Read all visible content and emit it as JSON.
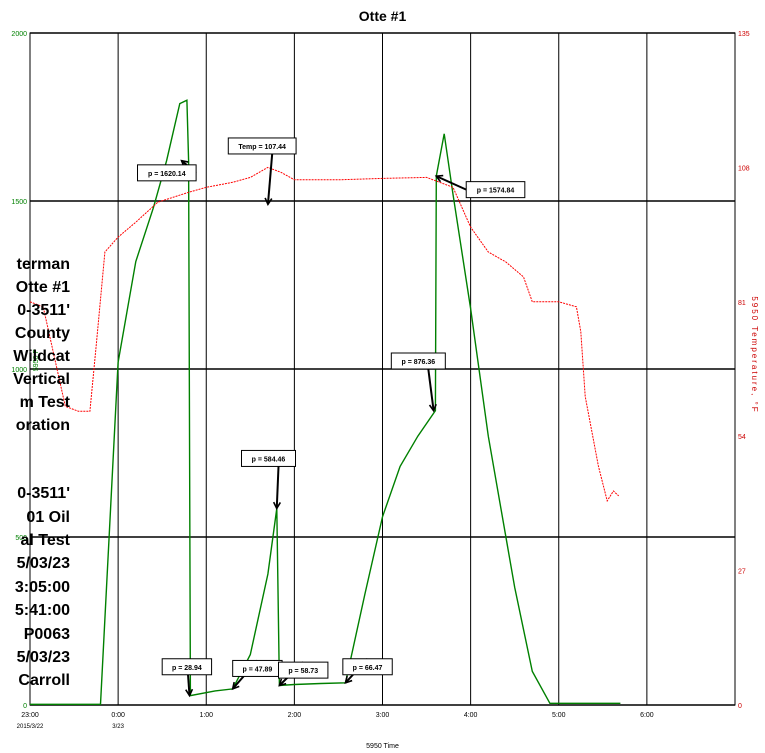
{
  "chart_data": {
    "type": "line",
    "title": "Otte #1",
    "xlabel": "5950 Time",
    "y2label": "5950 Temperature, °F",
    "y1label_fragment": "5950 P",
    "xlim_hours": [
      -1,
      7
    ],
    "ylim_left": [
      0,
      2000
    ],
    "ylim_right": [
      0,
      135
    ],
    "left_ticks": [
      "0",
      "500",
      "1000",
      "1500",
      "2000"
    ],
    "right_ticks": [
      "0",
      "27",
      "54",
      "81",
      "108",
      "135"
    ],
    "x_ticks": [
      {
        "t": -1,
        "l1": "23:00",
        "l2": "2015/3/22"
      },
      {
        "t": 0,
        "l1": "0:00",
        "l2": "3/23"
      },
      {
        "t": 1,
        "l1": "1:00",
        "l2": ""
      },
      {
        "t": 2,
        "l1": "2:00",
        "l2": ""
      },
      {
        "t": 3,
        "l1": "3:00",
        "l2": ""
      },
      {
        "t": 4,
        "l1": "4:00",
        "l2": ""
      },
      {
        "t": 5,
        "l1": "5:00",
        "l2": ""
      },
      {
        "t": 6,
        "l1": "6:00",
        "l2": ""
      }
    ],
    "colors": {
      "pressure": "#008000",
      "temperature": "#ff0000",
      "right_axis": "#cc0000",
      "left_axis": "#008000"
    },
    "series": [
      {
        "name": "5950 Pressure",
        "axis": "left",
        "points": [
          [
            -1,
            2
          ],
          [
            -0.2,
            2
          ],
          [
            0.0,
            1020
          ],
          [
            0.2,
            1320
          ],
          [
            0.4,
            1480
          ],
          [
            0.55,
            1620
          ],
          [
            0.62,
            1700
          ],
          [
            0.7,
            1790
          ],
          [
            0.78,
            1800
          ],
          [
            0.8,
            1620
          ],
          [
            0.82,
            28
          ],
          [
            1.1,
            42
          ],
          [
            1.3,
            48
          ],
          [
            1.5,
            150
          ],
          [
            1.7,
            390
          ],
          [
            1.8,
            585
          ],
          [
            1.83,
            58
          ],
          [
            2.0,
            61
          ],
          [
            2.3,
            64
          ],
          [
            2.58,
            66
          ],
          [
            2.8,
            330
          ],
          [
            3.0,
            560
          ],
          [
            3.2,
            710
          ],
          [
            3.4,
            800
          ],
          [
            3.6,
            876
          ],
          [
            3.61,
            1574
          ],
          [
            3.7,
            1700
          ],
          [
            3.8,
            1520
          ],
          [
            4.0,
            1180
          ],
          [
            4.2,
            800
          ],
          [
            4.5,
            350
          ],
          [
            4.7,
            100
          ],
          [
            4.9,
            5
          ],
          [
            5.7,
            5
          ]
        ]
      },
      {
        "name": "5950 Temperature",
        "axis": "right",
        "points": [
          [
            -1,
            81
          ],
          [
            -0.85,
            80
          ],
          [
            -0.6,
            60
          ],
          [
            -0.45,
            59
          ],
          [
            -0.32,
            59
          ],
          [
            -0.25,
            72
          ],
          [
            -0.15,
            91
          ],
          [
            0.0,
            94
          ],
          [
            0.2,
            97
          ],
          [
            0.45,
            101
          ],
          [
            0.8,
            103
          ],
          [
            1.0,
            104
          ],
          [
            1.3,
            105
          ],
          [
            1.5,
            106
          ],
          [
            1.7,
            108
          ],
          [
            1.85,
            107
          ],
          [
            2.0,
            105.5
          ],
          [
            2.5,
            105.5
          ],
          [
            3.0,
            105.8
          ],
          [
            3.5,
            106
          ],
          [
            3.8,
            104
          ],
          [
            4.0,
            96
          ],
          [
            4.2,
            91
          ],
          [
            4.4,
            89
          ],
          [
            4.6,
            86
          ],
          [
            4.7,
            81
          ],
          [
            5.0,
            81
          ],
          [
            5.2,
            80
          ],
          [
            5.25,
            75
          ],
          [
            5.3,
            62
          ],
          [
            5.45,
            48
          ],
          [
            5.55,
            41
          ],
          [
            5.62,
            43
          ],
          [
            5.68,
            42
          ]
        ]
      }
    ],
    "annotations": [
      {
        "text": "p = 1620.14",
        "t": 0.22,
        "y": 1560,
        "tip_t": 0.72,
        "tip_y": 1620,
        "dir": "left"
      },
      {
        "text": "Temp = 107.44",
        "t": 1.25,
        "y": 1640,
        "tip_t": 1.7,
        "tip_y": 1490,
        "dir": "down"
      },
      {
        "text": "p = 1574.84",
        "t": 3.95,
        "y": 1510,
        "tip_t": 3.61,
        "tip_y": 1574,
        "dir": "right"
      },
      {
        "text": "p = 876.36",
        "t": 3.1,
        "y": 1000,
        "tip_t": 3.58,
        "tip_y": 876,
        "dir": "down"
      },
      {
        "text": "p = 584.46",
        "t": 1.4,
        "y": 710,
        "tip_t": 1.8,
        "tip_y": 585,
        "dir": "down"
      },
      {
        "text": "p = 28.94",
        "t": 0.5,
        "y": 90,
        "tip_t": 0.81,
        "tip_y": 28,
        "dir": "up"
      },
      {
        "text": "p = 47.89",
        "t": 1.3,
        "y": 85,
        "tip_t": 1.3,
        "tip_y": 48,
        "dir": "up"
      },
      {
        "text": "p = 58.73",
        "t": 1.82,
        "y": 80,
        "tip_t": 1.83,
        "tip_y": 58,
        "dir": "up"
      },
      {
        "text": "p = 66.47",
        "t": 2.55,
        "y": 90,
        "tip_t": 2.58,
        "tip_y": 66,
        "dir": "up"
      }
    ]
  },
  "side_labels": [
    "terman",
    "Otte #1",
    "0-3511'",
    "County",
    "Wildcat",
    "Vertical",
    "m Test",
    "oration",
    "",
    "0-3511'",
    "01 Oil",
    "al Test",
    "5/03/23",
    "3:05:00",
    "5:41:00",
    "P0063",
    "5/03/23",
    "Carroll"
  ]
}
